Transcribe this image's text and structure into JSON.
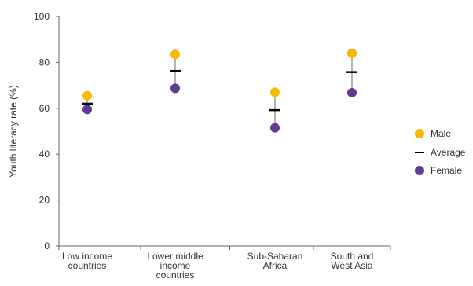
{
  "chart_data": {
    "type": "scatter",
    "title": "",
    "xlabel": "",
    "ylabel": "Youth literacy rate (%)",
    "ylim": [
      0,
      100
    ],
    "yticks": [
      "0",
      "20",
      "40",
      "60",
      "80",
      "100"
    ],
    "categories": [
      [
        "Low income",
        "countries"
      ],
      [
        "Lower middle",
        "income",
        "countries"
      ],
      [
        "Sub-Saharan",
        "Africa"
      ],
      [
        "South and",
        "West Asia"
      ]
    ],
    "series": [
      {
        "name": "Male",
        "values": [
          65.5,
          83.5,
          67,
          84
        ],
        "color": "#F5BA00",
        "marker": "circle"
      },
      {
        "name": "Average",
        "values": [
          62,
          76.3,
          59.2,
          75.8
        ],
        "color": "#000000",
        "marker": "dash"
      },
      {
        "name": "Female",
        "values": [
          59.5,
          68.7,
          51.5,
          66.8
        ],
        "color": "#5E3B95",
        "marker": "circle"
      }
    ],
    "range_line_color": "#9A9A9A",
    "legend_position": "right",
    "grid": false
  }
}
